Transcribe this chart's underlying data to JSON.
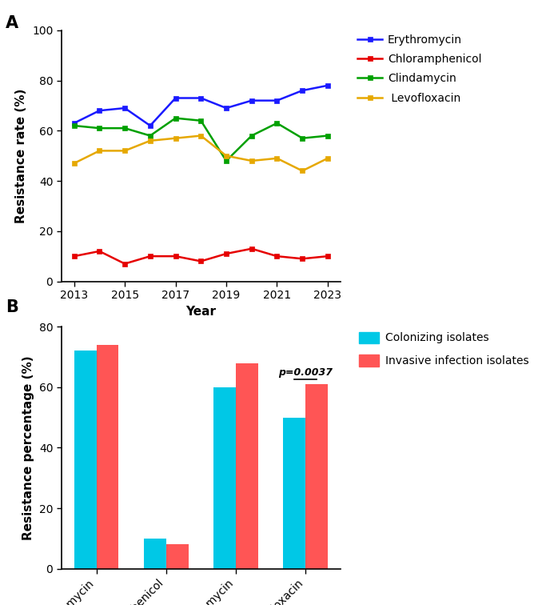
{
  "line_years": [
    2013,
    2014,
    2015,
    2016,
    2017,
    2018,
    2019,
    2020,
    2021,
    2022,
    2023
  ],
  "erythromycin": [
    63,
    68,
    69,
    62,
    73,
    73,
    69,
    72,
    72,
    76,
    78
  ],
  "chloramphenicol": [
    10,
    12,
    7,
    10,
    10,
    8,
    11,
    13,
    10,
    9,
    10
  ],
  "clindamycin": [
    62,
    61,
    61,
    58,
    65,
    64,
    48,
    58,
    63,
    57,
    58
  ],
  "levofloxacin": [
    47,
    52,
    52,
    56,
    57,
    58,
    50,
    48,
    49,
    44,
    49
  ],
  "line_colors": {
    "erythromycin": "#1a1aff",
    "chloramphenicol": "#e60000",
    "clindamycin": "#00a000",
    "levofloxacin": "#e6a800"
  },
  "line_labels": {
    "erythromycin": "Erythromycin",
    "chloramphenicol": "Chloramphenicol",
    "clindamycin": "Clindamycin",
    "levofloxacin": " Levofloxacin"
  },
  "line_ylabel": "Resistance rate (%)",
  "line_xlabel": "Year",
  "line_ylim": [
    0,
    100
  ],
  "line_yticks": [
    0,
    20,
    40,
    60,
    80,
    100
  ],
  "line_xticks": [
    2013,
    2015,
    2017,
    2019,
    2021,
    2023
  ],
  "bar_categories": [
    "Erythromycin",
    "Chloramphenicol",
    "Clindamycin",
    "Levofloxacin"
  ],
  "bar_colonizing": [
    72,
    10,
    60,
    50
  ],
  "bar_invasive": [
    74,
    8,
    68,
    61
  ],
  "bar_color_colonizing": "#00c8e6",
  "bar_color_invasive": "#ff5555",
  "bar_ylabel": "Resistance percentage (%)",
  "bar_ylim": [
    0,
    80
  ],
  "bar_yticks": [
    0,
    20,
    40,
    60,
    80
  ],
  "pvalue_text": "p=0.0037",
  "label_A": "A",
  "label_B": "B",
  "bar_width": 0.32
}
